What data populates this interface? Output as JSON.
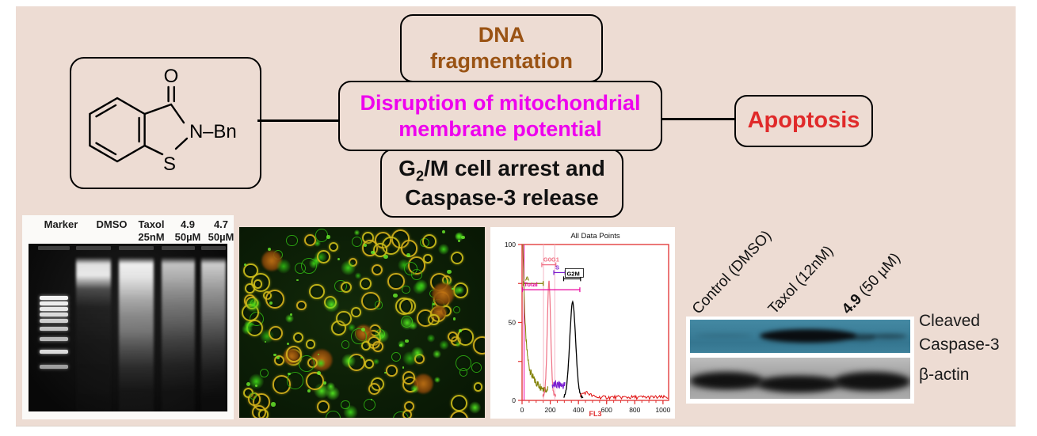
{
  "palette": {
    "background": "#EDDCD3",
    "brown": "#9A5314",
    "magenta": "#EE00EE",
    "red": "#E02A2A",
    "black": "#111111",
    "blot_teal": "#3D809A"
  },
  "scheme": {
    "molecule": {
      "carbonyl": "O",
      "nitrogen": "N",
      "n_substituent": "–Bn",
      "sulfur": "S"
    },
    "dna_box": {
      "line1": "DNA",
      "line2": "fragmentation",
      "color": "#9A5314"
    },
    "mito_box": {
      "line1": "Disruption of mitochondrial",
      "line2": "membrane potential",
      "color": "#EE00EE"
    },
    "g2m_box": {
      "g": "G",
      "sub": "2",
      "rest": "/M cell arrest and",
      "line2": "Caspase-3 release"
    },
    "apoptosis_box": {
      "text": "Apoptosis",
      "color": "#E02A2A"
    }
  },
  "gel": {
    "lane_labels": [
      {
        "name": "Marker",
        "dose": ""
      },
      {
        "name": "DMSO",
        "dose": ""
      },
      {
        "name": "Taxol",
        "dose": "25nM"
      },
      {
        "name": "4.9",
        "dose": "50µM"
      },
      {
        "name": "4.7",
        "dose": "50µM"
      }
    ]
  },
  "fluor": {
    "seed": 11,
    "cell_count": 170,
    "dot_count": 40,
    "colors": [
      "#cfc01a",
      "#d8b41c",
      "#3ed818",
      "#2fb512",
      "#52e820",
      "#cc7716"
    ]
  },
  "flow": {
    "title": "All Data Points",
    "xlabel": "FL3",
    "x_ticks": [
      0,
      200,
      400,
      600,
      800,
      1000
    ],
    "y_ticks": [
      0,
      50,
      100
    ],
    "x_range": [
      0,
      1040
    ],
    "y_range": [
      0,
      100
    ],
    "regions": [
      {
        "label": "G0G1",
        "color": "#ef6e82",
        "from": 140,
        "to": 240,
        "level": 87,
        "boxed": false
      },
      {
        "label": "S",
        "color": "#7a1fd0",
        "from": 225,
        "to": 305,
        "level": 82,
        "boxed": false
      },
      {
        "label": "G2M",
        "color": "#000000",
        "from": 295,
        "to": 415,
        "level": 78,
        "boxed": true
      },
      {
        "label": "A",
        "color": "#7f7f00",
        "from": 10,
        "to": 150,
        "level": 75,
        "boxed": false
      },
      {
        "label": "Total",
        "color": "#e8009e",
        "from": 2,
        "to": 410,
        "level": 71,
        "boxed": false
      }
    ],
    "curves": {
      "debris": {
        "color": "#7f7f00"
      },
      "g0g1_peak": {
        "x": 191,
        "height": 73,
        "width": 12,
        "color": "#ef6e82"
      },
      "s_phase": {
        "color": "#7a1fd0",
        "from": 214,
        "to": 305,
        "level": 8
      },
      "g2m_peak": {
        "x": 359,
        "height": 61,
        "width": 21,
        "color": "#000000"
      },
      "aggregates": {
        "color": "#e01010",
        "from": 412,
        "to": 1036,
        "level": 2
      }
    }
  },
  "blot": {
    "lanes": [
      {
        "bold": "",
        "rest": "Control (DMSO)"
      },
      {
        "bold": "",
        "rest": "Taxol (12nM)"
      },
      {
        "bold": "4.9",
        "rest": " (50 µM)"
      }
    ],
    "row_labels": [
      "Cleaved",
      "Caspase-3",
      "β-actin"
    ]
  },
  "chart_data": {
    "type": "line",
    "title": "All Data Points",
    "xlabel": "FL3",
    "xlim": [
      0,
      1040
    ],
    "ylim": [
      0,
      100
    ],
    "series": [
      {
        "name": "A / debris",
        "color": "olive",
        "shape": "spike at x=0 (clipped at 100) decaying to ~6 by x=180"
      },
      {
        "name": "G0/G1",
        "color": "pink",
        "peak_x": 191,
        "peak_y": 73
      },
      {
        "name": "S",
        "color": "purple",
        "range": [
          214,
          305
        ],
        "level": 8
      },
      {
        "name": "G2/M",
        "color": "black",
        "peak_x": 359,
        "peak_y": 61
      },
      {
        "name": "aggregates",
        "color": "red",
        "range": [
          412,
          1036
        ],
        "level": 2
      }
    ],
    "gates": [
      {
        "label": "G0G1",
        "from": 140,
        "to": 240
      },
      {
        "label": "S",
        "from": 225,
        "to": 305
      },
      {
        "label": "G2M",
        "from": 295,
        "to": 415
      },
      {
        "label": "A",
        "from": 10,
        "to": 150
      },
      {
        "label": "Total",
        "from": 2,
        "to": 410
      }
    ]
  }
}
